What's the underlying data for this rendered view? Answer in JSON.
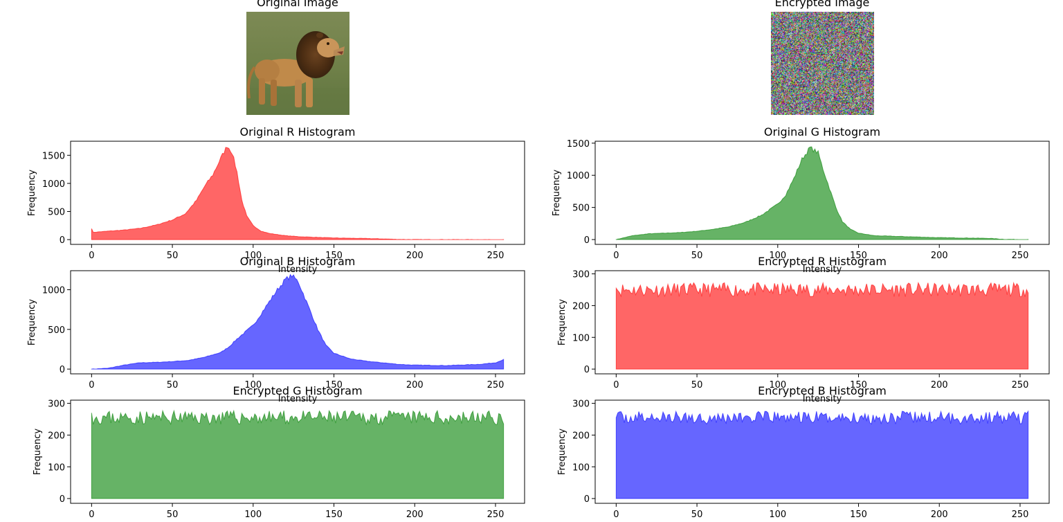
{
  "images": [
    {
      "id": "original",
      "title": "Original Image",
      "picture": "lion-photo"
    },
    {
      "id": "encrypted",
      "title": "Encrypted Image",
      "picture": "rgb-noise"
    }
  ],
  "colors": {
    "red": "#ff0000",
    "green": "#008000",
    "blue": "#0000ff"
  },
  "chart_data": [
    {
      "id": "orig-r",
      "type": "area",
      "title": "Original R Histogram",
      "xlabel": "Intensity",
      "ylabel": "Frequency",
      "color": "#ff0000",
      "xlim": [
        -13,
        268
      ],
      "ylim": [
        -85,
        1750
      ],
      "xticks": [
        0,
        50,
        100,
        150,
        200,
        250
      ],
      "yticks": [
        0,
        500,
        1000,
        1500
      ],
      "series": {
        "shape": "peak",
        "points": [
          [
            0,
            200
          ],
          [
            1,
            130
          ],
          [
            10,
            150
          ],
          [
            20,
            170
          ],
          [
            30,
            200
          ],
          [
            40,
            260
          ],
          [
            50,
            350
          ],
          [
            58,
            460
          ],
          [
            65,
            700
          ],
          [
            70,
            950
          ],
          [
            75,
            1150
          ],
          [
            80,
            1450
          ],
          [
            84,
            1670
          ],
          [
            87,
            1550
          ],
          [
            90,
            1200
          ],
          [
            93,
            700
          ],
          [
            96,
            420
          ],
          [
            100,
            250
          ],
          [
            105,
            150
          ],
          [
            110,
            110
          ],
          [
            120,
            70
          ],
          [
            130,
            50
          ],
          [
            150,
            30
          ],
          [
            170,
            20
          ],
          [
            190,
            5
          ],
          [
            200,
            2
          ],
          [
            255,
            0
          ]
        ]
      }
    },
    {
      "id": "orig-g",
      "type": "area",
      "title": "Original G Histogram",
      "xlabel": "Intensity",
      "ylabel": "Frequency",
      "color": "#008000",
      "xlim": [
        -13,
        268
      ],
      "ylim": [
        -75,
        1530
      ],
      "xticks": [
        0,
        50,
        100,
        150,
        200,
        250
      ],
      "yticks": [
        0,
        500,
        1000,
        1500
      ],
      "series": {
        "shape": "peak",
        "points": [
          [
            0,
            0
          ],
          [
            5,
            30
          ],
          [
            10,
            60
          ],
          [
            20,
            90
          ],
          [
            30,
            100
          ],
          [
            40,
            110
          ],
          [
            50,
            130
          ],
          [
            60,
            160
          ],
          [
            70,
            200
          ],
          [
            80,
            270
          ],
          [
            90,
            380
          ],
          [
            100,
            550
          ],
          [
            105,
            700
          ],
          [
            110,
            950
          ],
          [
            115,
            1250
          ],
          [
            120,
            1430
          ],
          [
            125,
            1350
          ],
          [
            128,
            1100
          ],
          [
            132,
            800
          ],
          [
            136,
            500
          ],
          [
            140,
            280
          ],
          [
            145,
            160
          ],
          [
            150,
            100
          ],
          [
            160,
            60
          ],
          [
            180,
            45
          ],
          [
            200,
            30
          ],
          [
            230,
            20
          ],
          [
            240,
            5
          ],
          [
            255,
            0
          ]
        ]
      }
    },
    {
      "id": "orig-b",
      "type": "area",
      "title": "Original B Histogram",
      "xlabel": "Intensity",
      "ylabel": "Frequency",
      "color": "#0000ff",
      "xlim": [
        -13,
        268
      ],
      "ylim": [
        -60,
        1240
      ],
      "xticks": [
        0,
        50,
        100,
        150,
        200,
        250
      ],
      "yticks": [
        0,
        500,
        1000
      ],
      "series": {
        "shape": "peak",
        "points": [
          [
            0,
            0
          ],
          [
            10,
            10
          ],
          [
            20,
            50
          ],
          [
            30,
            80
          ],
          [
            40,
            85
          ],
          [
            50,
            95
          ],
          [
            60,
            110
          ],
          [
            70,
            150
          ],
          [
            80,
            210
          ],
          [
            85,
            280
          ],
          [
            90,
            380
          ],
          [
            100,
            550
          ],
          [
            105,
            700
          ],
          [
            110,
            850
          ],
          [
            115,
            1000
          ],
          [
            120,
            1130
          ],
          [
            124,
            1180
          ],
          [
            128,
            1100
          ],
          [
            132,
            900
          ],
          [
            136,
            700
          ],
          [
            140,
            500
          ],
          [
            145,
            300
          ],
          [
            150,
            200
          ],
          [
            160,
            130
          ],
          [
            170,
            100
          ],
          [
            180,
            80
          ],
          [
            190,
            60
          ],
          [
            200,
            50
          ],
          [
            220,
            45
          ],
          [
            240,
            60
          ],
          [
            250,
            80
          ],
          [
            255,
            120
          ]
        ]
      }
    },
    {
      "id": "enc-r",
      "type": "area",
      "title": "Encrypted R Histogram",
      "xlabel": "Intensity",
      "ylabel": "Frequency",
      "color": "#ff0000",
      "xlim": [
        -13,
        268
      ],
      "ylim": [
        -15,
        310
      ],
      "xticks": [
        0,
        50,
        100,
        150,
        200,
        250
      ],
      "yticks": [
        0,
        100,
        200,
        300
      ],
      "series": {
        "shape": "flat",
        "mean": 250,
        "spread": 22,
        "seed": 11,
        "points": [
          [
            0,
            255
          ],
          [
            255,
            240
          ]
        ]
      }
    },
    {
      "id": "enc-g",
      "type": "area",
      "title": "Encrypted G Histogram",
      "xlabel": "",
      "ylabel": "Frequency",
      "color": "#008000",
      "xlim": [
        -13,
        268
      ],
      "ylim": [
        -15,
        310
      ],
      "xticks": [
        0,
        50,
        100,
        150,
        200,
        250
      ],
      "yticks": [
        0,
        100,
        200,
        300
      ],
      "series": {
        "shape": "flat",
        "mean": 255,
        "spread": 22,
        "seed": 23,
        "points": [
          [
            0,
            270
          ],
          [
            255,
            235
          ]
        ]
      }
    },
    {
      "id": "enc-b",
      "type": "area",
      "title": "Encrypted B Histogram",
      "xlabel": "",
      "ylabel": "Frequency",
      "color": "#0000ff",
      "xlim": [
        -13,
        268
      ],
      "ylim": [
        -15,
        310
      ],
      "xticks": [
        0,
        50,
        100,
        150,
        200,
        250
      ],
      "yticks": [
        0,
        100,
        200,
        300
      ],
      "series": {
        "shape": "flat",
        "mean": 255,
        "spread": 20,
        "seed": 37,
        "points": [
          [
            0,
            255
          ],
          [
            255,
            275
          ]
        ]
      }
    }
  ]
}
